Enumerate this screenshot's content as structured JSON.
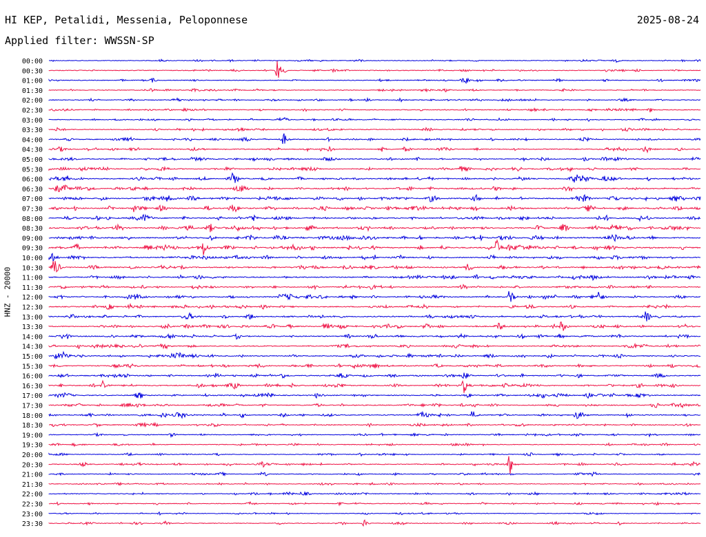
{
  "header": {
    "station": "HI KEP, Petalidi, Messenia, Peloponnese",
    "date": "2025-08-24",
    "filter": "Applied filter: WWSSN-SP"
  },
  "colors": {
    "even_row": "#0000dd",
    "odd_row": "#ee1144",
    "text": "#000000"
  },
  "chart_data": {
    "type": "helicorder",
    "ylabel": "HNZ - 20000",
    "row_labels": [
      "00:00",
      "00:30",
      "01:00",
      "01:30",
      "02:00",
      "02:30",
      "03:00",
      "03:30",
      "04:00",
      "04:30",
      "05:00",
      "05:30",
      "06:00",
      "06:30",
      "07:00",
      "07:30",
      "08:00",
      "08:30",
      "09:00",
      "09:30",
      "10:00",
      "10:30",
      "11:00",
      "11:30",
      "12:00",
      "12:30",
      "13:00",
      "13:30",
      "14:00",
      "14:30",
      "15:00",
      "15:30",
      "16:00",
      "16:30",
      "17:00",
      "17:30",
      "18:00",
      "18:30",
      "19:00",
      "19:30",
      "20:00",
      "20:30",
      "21:00",
      "21:30",
      "22:00",
      "22:30",
      "23:00",
      "23:30"
    ],
    "minutes_per_row": 30,
    "row_activity": [
      0.25,
      0.3,
      0.3,
      0.3,
      0.35,
      0.35,
      0.35,
      0.4,
      0.45,
      0.5,
      0.5,
      0.55,
      0.6,
      0.6,
      0.7,
      0.75,
      0.7,
      0.7,
      0.7,
      0.75,
      0.6,
      0.65,
      0.6,
      0.5,
      0.55,
      0.55,
      0.55,
      0.6,
      0.6,
      0.55,
      0.55,
      0.55,
      0.55,
      0.6,
      0.55,
      0.5,
      0.5,
      0.45,
      0.35,
      0.3,
      0.3,
      0.4,
      0.3,
      0.3,
      0.35,
      0.3,
      0.25,
      0.3
    ],
    "events": [
      {
        "row": 1,
        "minute": 10.5,
        "amplitude": 18
      },
      {
        "row": 8,
        "minute": 10.8,
        "amplitude": 10
      },
      {
        "row": 12,
        "minute": 8.5,
        "amplitude": 12
      },
      {
        "row": 14,
        "minute": 26.0,
        "amplitude": 8
      },
      {
        "row": 18,
        "minute": 26.0,
        "amplitude": 10
      },
      {
        "row": 19,
        "minute": 7.1,
        "amplitude": 14
      },
      {
        "row": 19,
        "minute": 20.6,
        "amplitude": 14
      },
      {
        "row": 21,
        "minute": 0.2,
        "amplitude": 14
      },
      {
        "row": 24,
        "minute": 21.2,
        "amplitude": 14
      },
      {
        "row": 24,
        "minute": 25.3,
        "amplitude": 12
      },
      {
        "row": 26,
        "minute": 27.5,
        "amplitude": 10
      },
      {
        "row": 27,
        "minute": 23.6,
        "amplitude": 12
      },
      {
        "row": 33,
        "minute": 19.1,
        "amplitude": 12
      },
      {
        "row": 33,
        "minute": 2.5,
        "amplitude": 8
      },
      {
        "row": 36,
        "minute": 19.5,
        "amplitude": 8
      },
      {
        "row": 41,
        "minute": 21.2,
        "amplitude": 20
      },
      {
        "row": 47,
        "minute": 14.5,
        "amplitude": 6
      }
    ]
  }
}
